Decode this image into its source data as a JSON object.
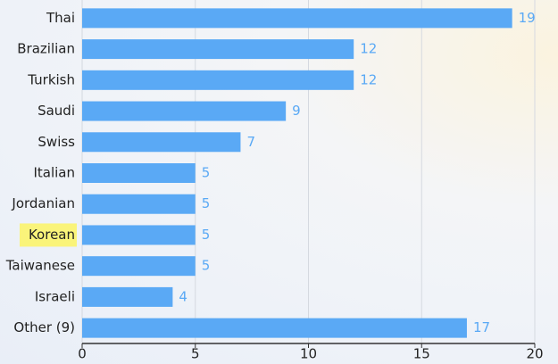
{
  "chart_data": {
    "type": "bar",
    "orientation": "horizontal",
    "categories": [
      "Thai",
      "Brazilian",
      "Turkish",
      "Saudi",
      "Swiss",
      "Italian",
      "Jordanian",
      "Korean",
      "Taiwanese",
      "Israeli",
      "Other (9)"
    ],
    "values": [
      19,
      12,
      12,
      9,
      7,
      5,
      5,
      5,
      5,
      4,
      17
    ],
    "color": "#5aa9f5",
    "highlight": "Korean",
    "highlight_color": "#faf47a",
    "xlim": [
      0,
      20
    ],
    "xticks": [
      0,
      5,
      10,
      15,
      20
    ],
    "grid": true
  }
}
